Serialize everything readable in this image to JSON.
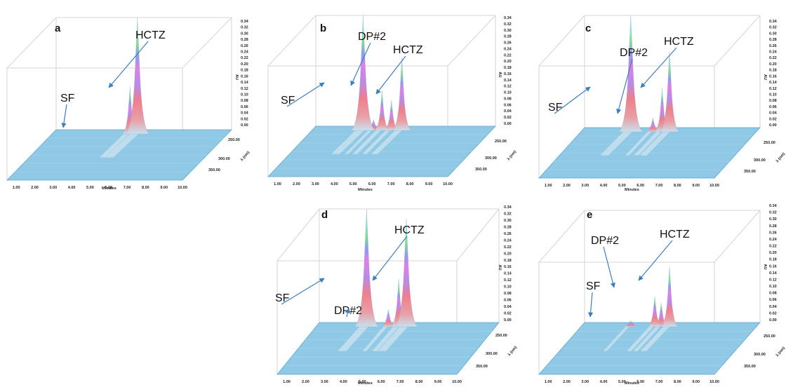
{
  "figure": {
    "shared": {
      "x_ticks": [
        "1.00",
        "2.00",
        "3.00",
        "4.00",
        "5.00",
        "6.00",
        "7.00",
        "8.00",
        "9.00",
        "10.00"
      ],
      "xlabel": "Minutes",
      "au_ticks": [
        "0.00",
        "0.02",
        "0.04",
        "0.06",
        "0.08",
        "0.10",
        "0.12",
        "0.14",
        "0.16",
        "0.18",
        "0.20",
        "0.22",
        "0.24",
        "0.26",
        "0.28",
        "0.30",
        "0.32",
        "0.34"
      ],
      "au_label": "AU",
      "wl_ticks": [
        "250.00",
        "300.00",
        "350.00"
      ],
      "wl_label": "λ (nm)"
    },
    "colors": {
      "floor": "#8fc9e6",
      "floor_edge": "#5aa6cf",
      "box": "#c8c8c8",
      "arrow": "#3a7fc1",
      "peak_base": "#c9e0ee"
    }
  },
  "chart_data": [
    {
      "type": "area",
      "panel": "a",
      "labels": [
        {
          "text": "SF",
          "x": 3.0
        },
        {
          "text": "HCTZ",
          "x": 4.9
        }
      ],
      "peaks": [
        {
          "name": "HCTZ",
          "x": 4.9,
          "y": 0.34
        },
        {
          "x": 4.5,
          "y": 0.13
        }
      ],
      "xlim": [
        0.5,
        10.0
      ],
      "ylim": [
        0.0,
        0.34
      ]
    },
    {
      "type": "area",
      "panel": "b",
      "labels": [
        {
          "text": "SF",
          "x": 3.0
        },
        {
          "text": "DP#2",
          "x": 4.0
        },
        {
          "text": "HCTZ",
          "x": 5.05
        }
      ],
      "peaks": [
        {
          "name": "SF",
          "x": 3.0,
          "y": 0.34
        },
        {
          "x": 3.55,
          "y": 0.02
        },
        {
          "name": "DP#2",
          "x": 4.0,
          "y": 0.11
        },
        {
          "x": 4.5,
          "y": 0.08
        },
        {
          "name": "HCTZ",
          "x": 5.05,
          "y": 0.21
        }
      ],
      "xlim": [
        0.5,
        10.0
      ],
      "ylim": [
        0.0,
        0.34
      ]
    },
    {
      "type": "area",
      "panel": "c",
      "labels": [
        {
          "text": "SF",
          "x": 3.0
        },
        {
          "text": "DP#2",
          "x": 4.2
        },
        {
          "text": "HCTZ",
          "x": 5.1
        }
      ],
      "peaks": [
        {
          "name": "SF",
          "x": 3.0,
          "y": 0.34
        },
        {
          "name": "DP#2",
          "x": 4.2,
          "y": 0.03
        },
        {
          "x": 4.7,
          "y": 0.12
        },
        {
          "name": "HCTZ",
          "x": 5.1,
          "y": 0.23
        }
      ],
      "xlim": [
        0.5,
        10.0
      ],
      "ylim": [
        0.0,
        0.34
      ]
    },
    {
      "type": "area",
      "panel": "d",
      "labels": [
        {
          "text": "SF",
          "x": 3.0
        },
        {
          "text": "DP#2",
          "x": 4.15
        },
        {
          "text": "HCTZ",
          "x": 5.1
        }
      ],
      "peaks": [
        {
          "name": "SF",
          "x": 3.0,
          "y": 0.34
        },
        {
          "name": "DP#2",
          "x": 4.15,
          "y": 0.04
        },
        {
          "x": 4.7,
          "y": 0.13
        },
        {
          "name": "HCTZ",
          "x": 5.1,
          "y": 0.31
        }
      ],
      "xlim": [
        0.5,
        10.0
      ],
      "ylim": [
        0.0,
        0.34
      ]
    },
    {
      "type": "area",
      "panel": "e",
      "labels": [
        {
          "text": "SF",
          "x": 3.0
        },
        {
          "text": "DP#2",
          "x": 4.3
        },
        {
          "text": "HCTZ",
          "x": 5.1
        }
      ],
      "peaks": [
        {
          "name": "SF",
          "x": 3.0,
          "y": 0.005
        },
        {
          "name": "DP#2",
          "x": 4.3,
          "y": 0.08
        },
        {
          "x": 4.65,
          "y": 0.06
        },
        {
          "name": "HCTZ",
          "x": 5.1,
          "y": 0.17
        }
      ],
      "xlim": [
        0.5,
        10.0
      ],
      "ylim": [
        0.0,
        0.34
      ]
    }
  ]
}
